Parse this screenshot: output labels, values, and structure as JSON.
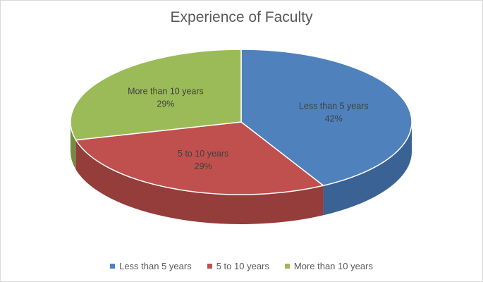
{
  "chart_data": {
    "type": "pie",
    "title": "Experience of Faculty",
    "style": "3d",
    "slices": [
      {
        "label": "Less than 5 years",
        "value": 42,
        "value_label": "42%",
        "color": "#4f81bd",
        "side_color": "#3a6294"
      },
      {
        "label": "5 to 10 years",
        "value": 29,
        "value_label": "29%",
        "color": "#c0504d",
        "side_color": "#943d3a"
      },
      {
        "label": "More than 10 years",
        "value": 29,
        "value_label": "29%",
        "color": "#9bbb59",
        "side_color": "#738c40"
      }
    ],
    "legend_position": "bottom"
  }
}
